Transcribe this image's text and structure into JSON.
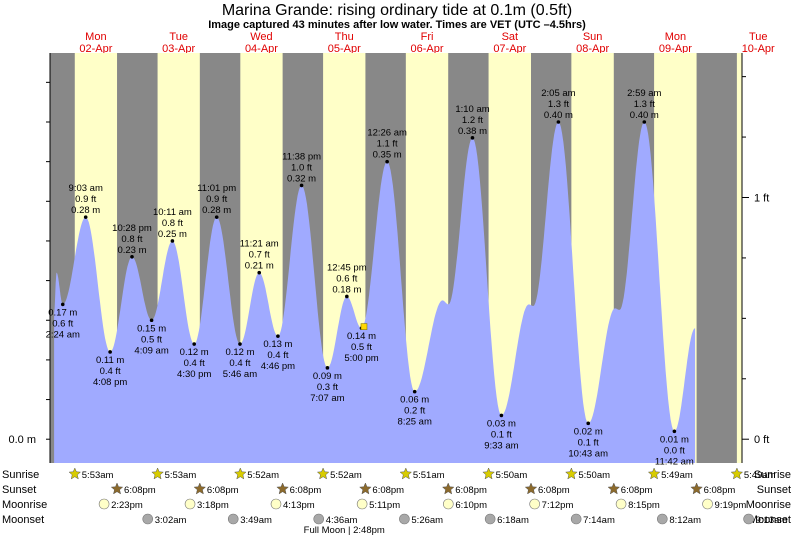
{
  "title": "Marina Grande: rising  ordinary tide at 0.1m (0.5ft)",
  "subtitle": "Image captured 43 minutes after low water. Times are VET (UTC –4.5hrs)",
  "colors": {
    "day": "#ffffc8",
    "night": "#888888",
    "water": "#a0aaff",
    "day_label": "#e00000",
    "sun_star": "#d8cc00",
    "sunset_star": "#8c6a2c",
    "moonrise": "#ffffc8",
    "moonset": "#a8a8a8"
  },
  "chart_data": {
    "type": "area",
    "title": "Marina Grande: rising  ordinary tide at 0.1m (0.5ft)",
    "x_unit": "hours from Mon 02-Apr 00:00 VET",
    "xlim": [
      -1.3,
      199.3
    ],
    "ylim_m": [
      -0.03,
      0.487
    ],
    "grid": false,
    "days": [
      {
        "weekday": "Mon",
        "date": "02-Apr"
      },
      {
        "weekday": "Tue",
        "date": "03-Apr"
      },
      {
        "weekday": "Wed",
        "date": "04-Apr"
      },
      {
        "weekday": "Thu",
        "date": "05-Apr"
      },
      {
        "weekday": "Fri",
        "date": "06-Apr"
      },
      {
        "weekday": "Sat",
        "date": "07-Apr"
      },
      {
        "weekday": "Sun",
        "date": "08-Apr"
      },
      {
        "weekday": "Mon",
        "date": "09-Apr"
      },
      {
        "weekday": "Tue",
        "date": "10-Apr"
      }
    ],
    "left_axis": [
      {
        "label": "0.0 m",
        "value_m": 0.0
      }
    ],
    "right_axis": [
      {
        "label": "0 ft",
        "value_ft": 0
      },
      {
        "label": "1 ft",
        "value_ft": 1
      }
    ],
    "extremes": [
      {
        "h": 2.4,
        "m": 0.17,
        "time": "2:24 am",
        "ft": "0.6 ft",
        "mlabel": "0.17 m",
        "type": "low"
      },
      {
        "h": 9.05,
        "m": 0.28,
        "time": "9:03 am",
        "ft": "0.9 ft",
        "mlabel": "0.28 m",
        "type": "high"
      },
      {
        "h": 16.13,
        "m": 0.11,
        "time": "4:08 pm",
        "ft": "0.4 ft",
        "mlabel": "0.11 m",
        "type": "low"
      },
      {
        "h": 22.47,
        "m": 0.23,
        "time": "10:28 pm",
        "ft": "0.8 ft",
        "mlabel": "0.23 m",
        "type": "high"
      },
      {
        "h": 28.15,
        "m": 0.15,
        "time": "4:09 am",
        "ft": "0.5 ft",
        "mlabel": "0.15 m",
        "type": "low"
      },
      {
        "h": 34.18,
        "m": 0.25,
        "time": "10:11 am",
        "ft": "0.8 ft",
        "mlabel": "0.25 m",
        "type": "high"
      },
      {
        "h": 40.5,
        "m": 0.12,
        "time": "4:30 pm",
        "ft": "0.4 ft",
        "mlabel": "0.12 m",
        "type": "low"
      },
      {
        "h": 47.02,
        "m": 0.28,
        "time": "11:01 pm",
        "ft": "0.9 ft",
        "mlabel": "0.28 m",
        "type": "high"
      },
      {
        "h": 53.77,
        "m": 0.12,
        "time": "5:46 am",
        "ft": "0.4 ft",
        "mlabel": "0.12 m",
        "type": "low"
      },
      {
        "h": 59.35,
        "m": 0.21,
        "time": "11:21 am",
        "ft": "0.7 ft",
        "mlabel": "0.21 m",
        "type": "high"
      },
      {
        "h": 64.77,
        "m": 0.13,
        "time": "4:46 pm",
        "ft": "0.4 ft",
        "mlabel": "0.13 m",
        "type": "low"
      },
      {
        "h": 71.63,
        "m": 0.32,
        "time": "11:38 pm",
        "ft": "1.0 ft",
        "mlabel": "0.32 m",
        "type": "high"
      },
      {
        "h": 79.12,
        "m": 0.09,
        "time": "7:07 am",
        "ft": "0.3 ft",
        "mlabel": "0.09 m",
        "type": "low"
      },
      {
        "h": 84.75,
        "m": 0.18,
        "time": "12:45 pm",
        "ft": "0.6 ft",
        "mlabel": "0.18 m",
        "type": "high"
      },
      {
        "h": 89.0,
        "m": 0.14,
        "time": "5:00 pm",
        "ft": "0.5 ft",
        "mlabel": "0.14 m",
        "type": "low"
      },
      {
        "h": 96.43,
        "m": 0.35,
        "time": "12:26 am",
        "ft": "1.1 ft",
        "mlabel": "0.35 m",
        "type": "high"
      },
      {
        "h": 104.42,
        "m": 0.06,
        "time": "8:25 am",
        "ft": "0.2 ft",
        "mlabel": "0.06 m",
        "type": "low"
      },
      {
        "h": 121.17,
        "m": 0.38,
        "time": "1:10 am",
        "ft": "1.2 ft",
        "mlabel": "0.38 m",
        "type": "high"
      },
      {
        "h": 129.55,
        "m": 0.03,
        "time": "9:33 am",
        "ft": "0.1 ft",
        "mlabel": "0.03 m",
        "type": "low"
      },
      {
        "h": 146.08,
        "m": 0.4,
        "time": "2:05 am",
        "ft": "1.3 ft",
        "mlabel": "0.40 m",
        "type": "high"
      },
      {
        "h": 154.72,
        "m": 0.02,
        "time": "10:43 am",
        "ft": "0.1 ft",
        "mlabel": "0.02 m",
        "type": "low"
      },
      {
        "h": 170.98,
        "m": 0.4,
        "time": "2:59 am",
        "ft": "1.3 ft",
        "mlabel": "0.40 m",
        "type": "high"
      },
      {
        "h": 179.7,
        "m": 0.01,
        "time": "11:42 am",
        "ft": "0.0 ft",
        "mlabel": "0.01 m",
        "type": "low"
      }
    ],
    "unlabeled_turns": [
      {
        "h": 112.5,
        "m": 0.175
      },
      {
        "h": 114.2,
        "m": 0.17
      },
      {
        "h": 137.5,
        "m": 0.17
      },
      {
        "h": 138.8,
        "m": 0.168
      },
      {
        "h": 162.5,
        "m": 0.165
      },
      {
        "h": 163.8,
        "m": 0.163
      },
      {
        "h": 185.7,
        "m": 0.14
      }
    ],
    "series_end_h": 185.7,
    "sunrise": [
      "5:53am",
      "5:53am",
      "5:52am",
      "5:52am",
      "5:51am",
      "5:50am",
      "5:50am",
      "5:49am",
      "5:49am"
    ],
    "sunset": [
      "6:08pm",
      "6:08pm",
      "6:08pm",
      "6:08pm",
      "6:08pm",
      "6:08pm",
      "6:08pm",
      "6:08pm"
    ],
    "moonrise": [
      "2:23pm",
      "3:18pm",
      "4:13pm",
      "5:11pm",
      "6:10pm",
      "7:12pm",
      "8:15pm",
      "9:19pm"
    ],
    "moonset": [
      "3:02am",
      "3:49am",
      "4:36am",
      "5:26am",
      "6:18am",
      "7:14am",
      "8:12am",
      "9:13am"
    ],
    "row_labels": {
      "sunrise": "Sunrise",
      "sunset": "Sunset",
      "moonrise": "Moonrise",
      "moonset": "Moonset"
    },
    "moon_phase": {
      "label": "Full Moon | 2:48pm"
    },
    "current_marker": {
      "h": 89.72,
      "m": 0.142
    }
  }
}
